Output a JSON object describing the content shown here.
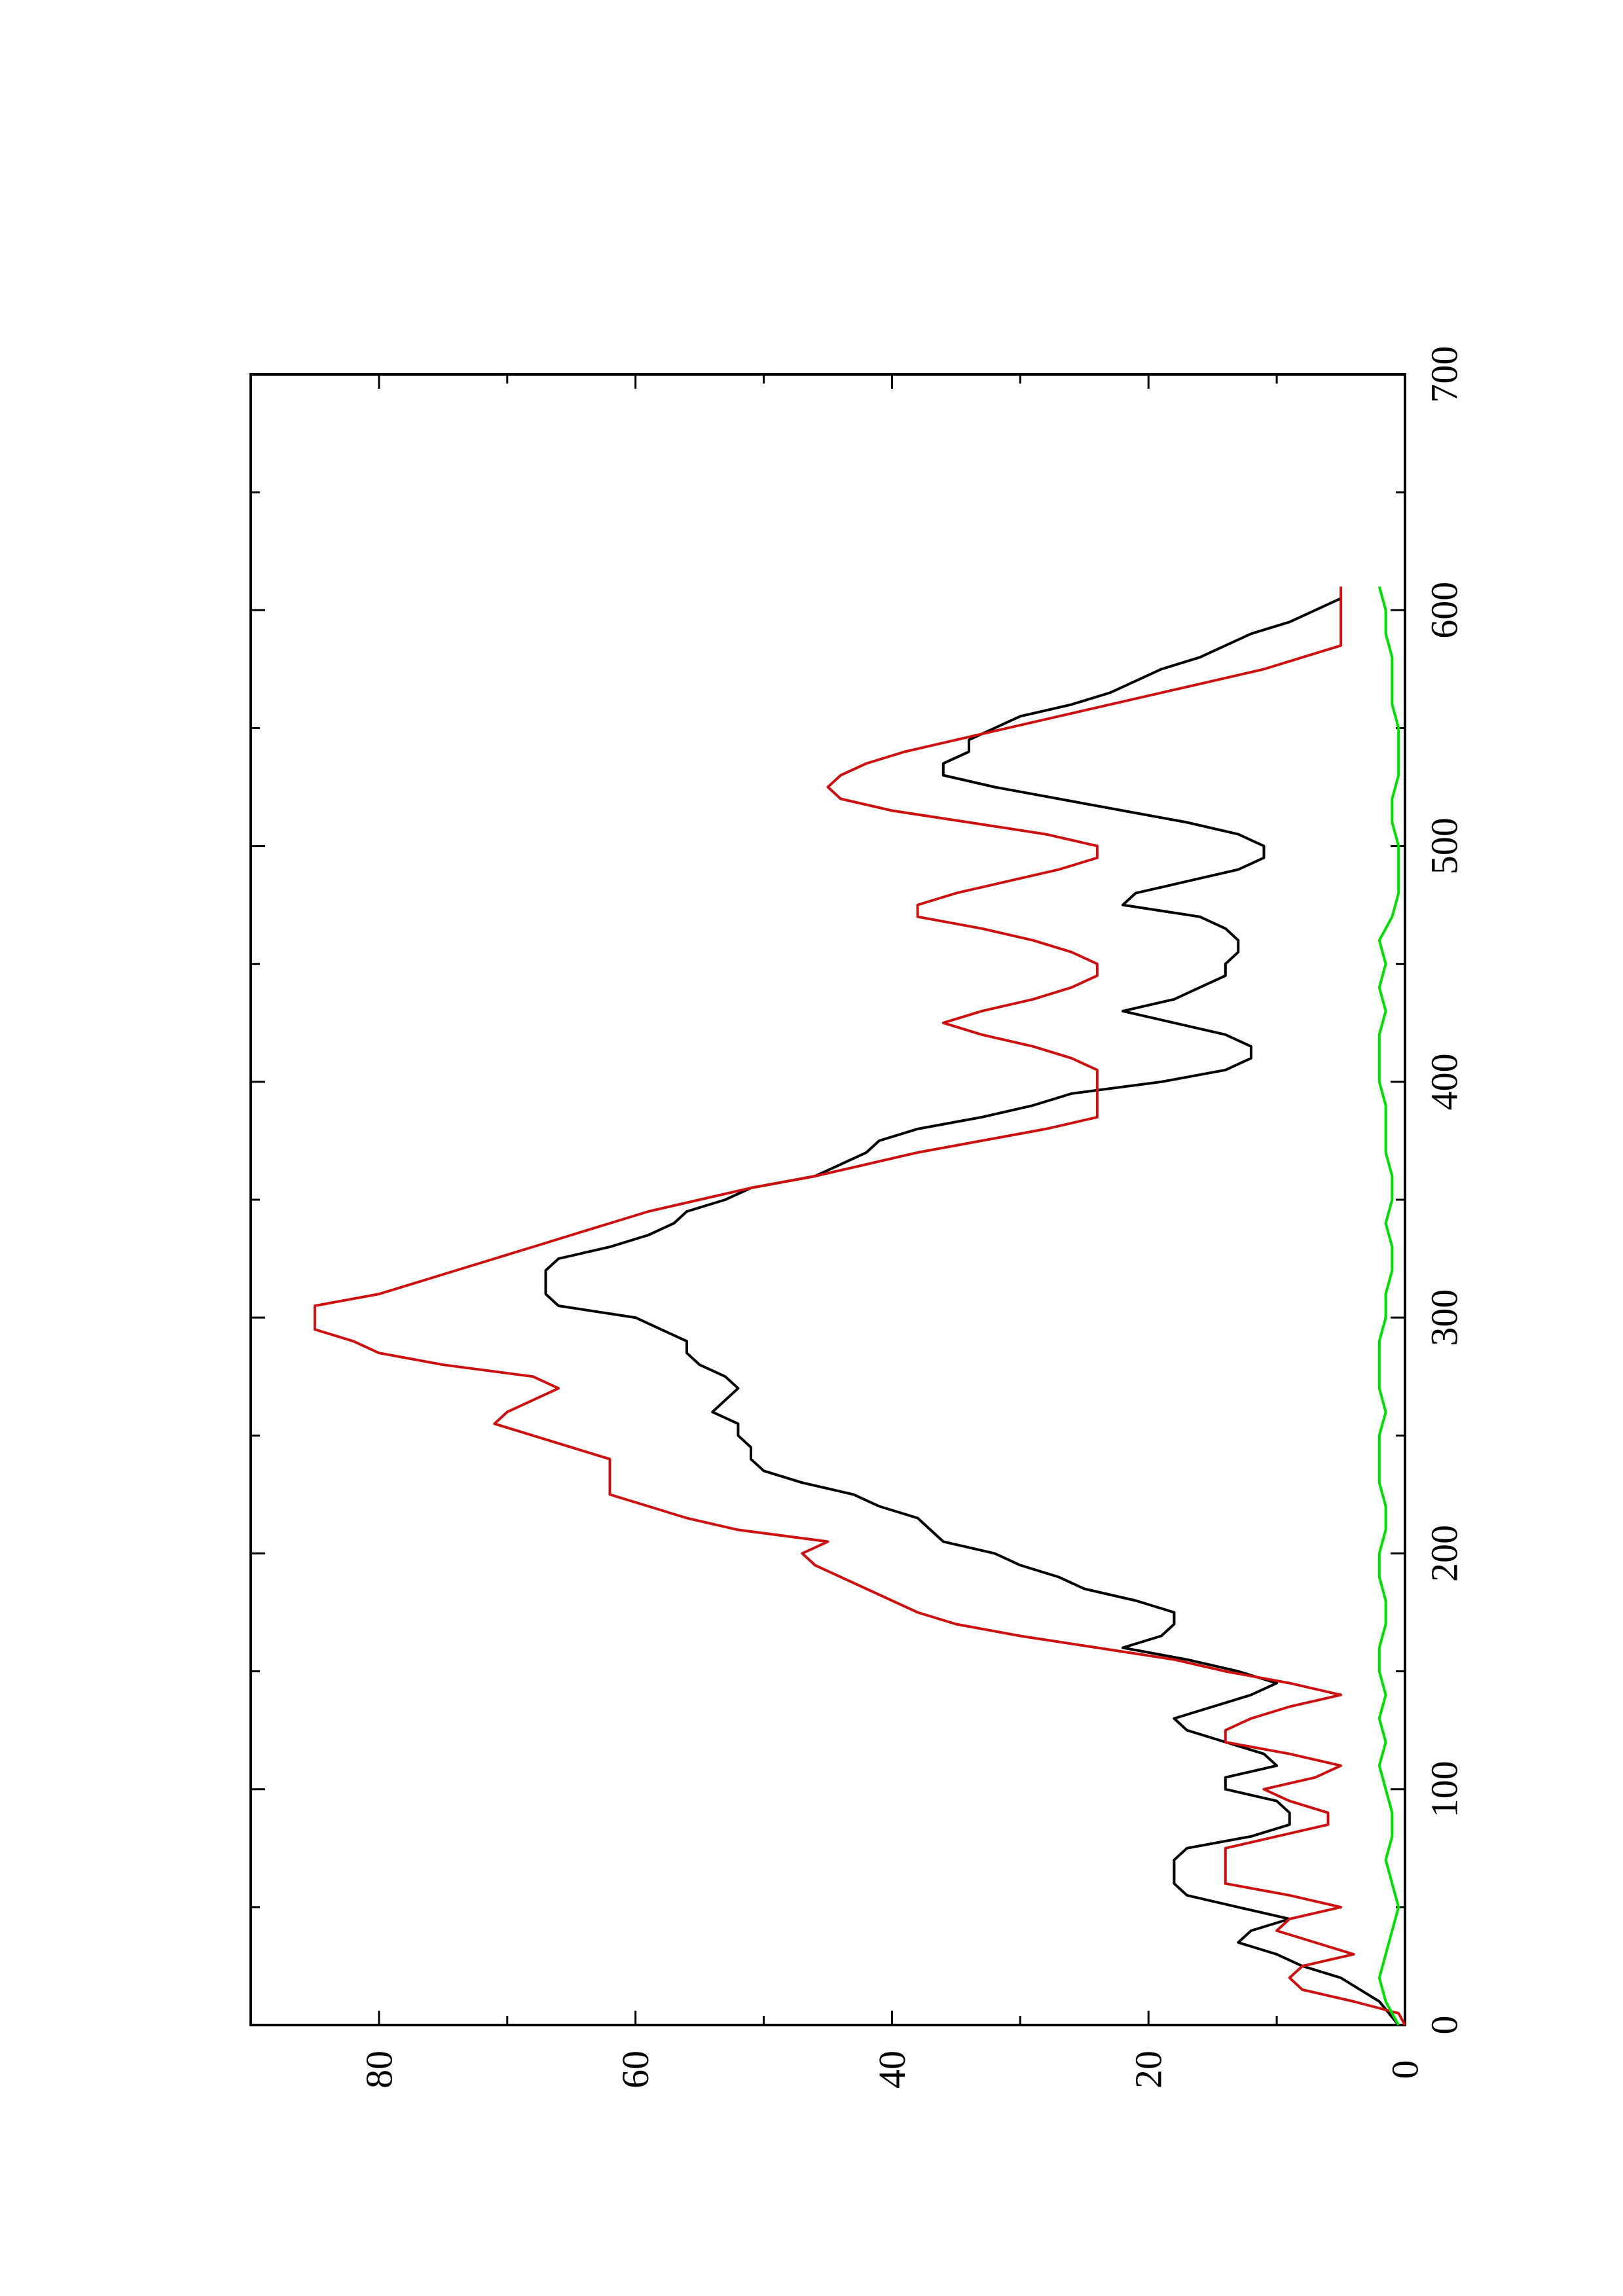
{
  "chart_data": {
    "type": "line",
    "orientation": "rotated-90-ccw",
    "title": "",
    "xlabel": "",
    "ylabel": "",
    "xlim": [
      0,
      700
    ],
    "ylim": [
      0,
      90
    ],
    "x_ticks": [
      0,
      100,
      200,
      300,
      400,
      500,
      600,
      700
    ],
    "x_tick_labels": [
      "0",
      "100",
      "200",
      "300",
      "400",
      "500",
      "600",
      "700"
    ],
    "y_ticks": [
      0,
      20,
      40,
      60,
      80
    ],
    "y_tick_labels": [
      "0",
      "20",
      "40",
      "60",
      "80"
    ],
    "grid": false,
    "legend": "none",
    "series": [
      {
        "color": "#000000",
        "x": [
          0,
          10,
          20,
          25,
          30,
          35,
          40,
          45,
          50,
          55,
          60,
          70,
          75,
          80,
          85,
          90,
          95,
          100,
          105,
          110,
          115,
          120,
          125,
          130,
          135,
          140,
          145,
          150,
          155,
          160,
          165,
          170,
          175,
          180,
          185,
          190,
          195,
          200,
          205,
          210,
          215,
          220,
          225,
          230,
          235,
          240,
          245,
          250,
          255,
          260,
          265,
          270,
          275,
          280,
          285,
          290,
          295,
          300,
          305,
          310,
          315,
          320,
          325,
          330,
          335,
          340,
          345,
          350,
          355,
          360,
          365,
          370,
          375,
          380,
          385,
          390,
          395,
          400,
          405,
          410,
          415,
          420,
          425,
          430,
          435,
          440,
          445,
          450,
          455,
          460,
          465,
          470,
          475,
          480,
          485,
          490,
          495,
          500,
          505,
          510,
          515,
          520,
          525,
          530,
          535,
          540,
          545,
          550,
          555,
          560,
          565,
          570,
          575,
          580,
          585,
          590,
          595,
          600,
          605
        ],
        "y": [
          0.5,
          2,
          5,
          8,
          10,
          13,
          12,
          9,
          13,
          17,
          18,
          18,
          17,
          12,
          9,
          9,
          10,
          14,
          14,
          10,
          11,
          14,
          17,
          18,
          15,
          12,
          10,
          13,
          17,
          22,
          19,
          18,
          18,
          21,
          25,
          27,
          30,
          32,
          36,
          37,
          38,
          41,
          43,
          47,
          50,
          51,
          51,
          52,
          52,
          54,
          53,
          52,
          53,
          55,
          56,
          56,
          58,
          60,
          66,
          67,
          67,
          67,
          66,
          62,
          59,
          57,
          56,
          53,
          51,
          46,
          44,
          42,
          41,
          38,
          33,
          29,
          26,
          19,
          14,
          12,
          12,
          14,
          18,
          22,
          18,
          16,
          14,
          14,
          13,
          13,
          14,
          16,
          22,
          21,
          17,
          13,
          11,
          11,
          13,
          17,
          22,
          27,
          32,
          36,
          36,
          34,
          34,
          32,
          30,
          26,
          23,
          21,
          19,
          16,
          14,
          12,
          9,
          7,
          5
        ]
      },
      {
        "color": "#cc1111",
        "x": [
          0,
          5,
          10,
          15,
          20,
          25,
          30,
          35,
          40,
          45,
          50,
          55,
          60,
          65,
          70,
          75,
          80,
          85,
          90,
          95,
          100,
          105,
          110,
          115,
          120,
          125,
          130,
          135,
          140,
          145,
          150,
          155,
          160,
          165,
          170,
          175,
          180,
          185,
          190,
          195,
          200,
          205,
          210,
          215,
          220,
          225,
          230,
          235,
          240,
          245,
          250,
          255,
          260,
          265,
          270,
          275,
          280,
          285,
          290,
          295,
          300,
          305,
          310,
          315,
          320,
          325,
          330,
          335,
          340,
          345,
          350,
          355,
          360,
          365,
          370,
          375,
          380,
          385,
          390,
          395,
          400,
          405,
          410,
          415,
          420,
          425,
          430,
          435,
          440,
          445,
          450,
          455,
          460,
          465,
          470,
          475,
          480,
          485,
          490,
          495,
          500,
          505,
          510,
          515,
          520,
          525,
          530,
          535,
          540,
          545,
          550,
          555,
          560,
          565,
          570,
          575,
          580,
          585,
          590,
          595,
          600,
          605,
          610
        ],
        "y": [
          0,
          0.5,
          4,
          8,
          9,
          8,
          4,
          7,
          10,
          9,
          5,
          9,
          14,
          14,
          14,
          14,
          10,
          6,
          6,
          9,
          11,
          7,
          5,
          9,
          14,
          14,
          12,
          9,
          5,
          9,
          14,
          18,
          24,
          30,
          35,
          38,
          40,
          42,
          44,
          46,
          47,
          45,
          52,
          56,
          59,
          62,
          62,
          62,
          62,
          65,
          68,
          71,
          70,
          68,
          66,
          68,
          75,
          80,
          82,
          85,
          85,
          85,
          80,
          77,
          74,
          71,
          68,
          65,
          62,
          59,
          55,
          51,
          46,
          42,
          38,
          33,
          28,
          24,
          24,
          24,
          24,
          24,
          26,
          29,
          33,
          36,
          33,
          29,
          26,
          24,
          24,
          26,
          29,
          33,
          38,
          38,
          35,
          31,
          27,
          24,
          24,
          28,
          34,
          40,
          44,
          45,
          44,
          42,
          39,
          35,
          31,
          27,
          23,
          19,
          15,
          11,
          8,
          5,
          5,
          5,
          5,
          5,
          5
        ]
      },
      {
        "color": "#00dd00",
        "x": [
          0,
          10,
          20,
          30,
          40,
          50,
          60,
          70,
          80,
          90,
          100,
          110,
          120,
          130,
          140,
          150,
          160,
          170,
          180,
          190,
          200,
          210,
          220,
          230,
          240,
          250,
          260,
          270,
          280,
          290,
          300,
          310,
          320,
          330,
          340,
          350,
          360,
          370,
          380,
          390,
          400,
          410,
          420,
          430,
          440,
          450,
          460,
          470,
          480,
          490,
          500,
          510,
          520,
          530,
          540,
          550,
          560,
          570,
          580,
          590,
          600,
          610
        ],
        "y": [
          0.5,
          1.5,
          2,
          1.5,
          1,
          0.5,
          1,
          1.5,
          1,
          1,
          1.5,
          2,
          1.5,
          2,
          1.5,
          2,
          2,
          1.5,
          1.5,
          2,
          2,
          1.5,
          1.5,
          2,
          2,
          2,
          1.5,
          2,
          2,
          2,
          1.5,
          1.5,
          1,
          1,
          1.5,
          1,
          1,
          1.5,
          1.5,
          1.5,
          2,
          2,
          2,
          1.5,
          2,
          1.5,
          2,
          1,
          0.5,
          0.5,
          0.5,
          1,
          1,
          0.5,
          0.5,
          0.5,
          1,
          1,
          1,
          1.5,
          1.5,
          2
        ]
      }
    ]
  }
}
